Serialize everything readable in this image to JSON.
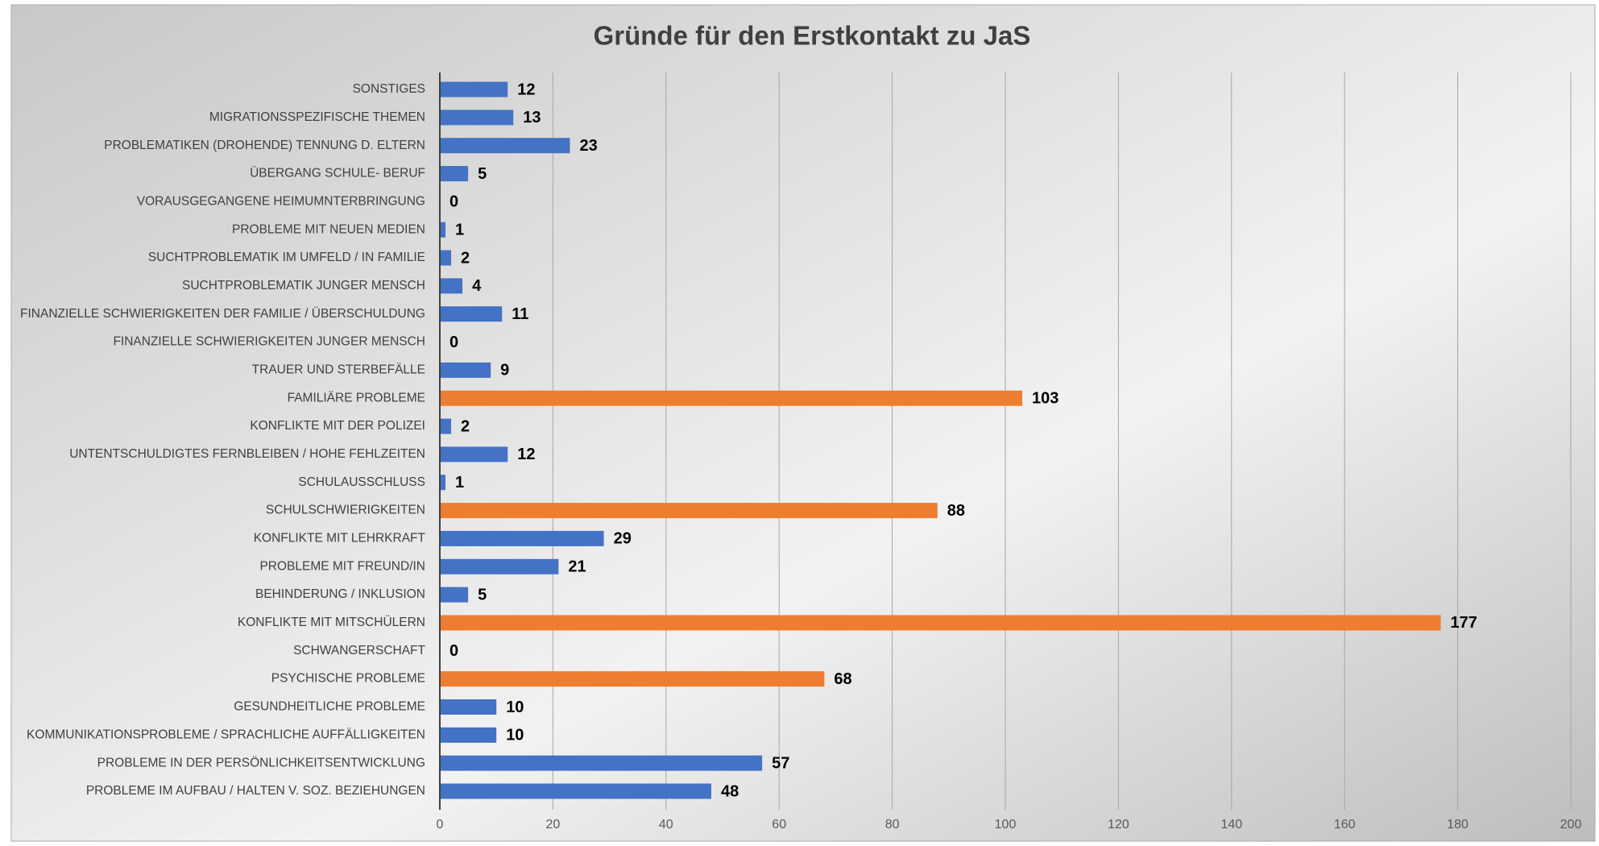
{
  "chart_data": {
    "type": "bar",
    "orientation": "horizontal",
    "title": "Gründe für den Erstkontakt zu JaS",
    "categories": [
      "SONSTIGES",
      "MIGRATIONSSPEZIFISCHE THEMEN",
      "PROBLEMATIKEN (DROHENDE) TENNUNG D. ELTERN",
      "ÜBERGANG SCHULE- BERUF",
      "VORAUSGEGANGENE HEIMUMNTERBRINGUNG",
      "PROBLEME MIT NEUEN MEDIEN",
      "SUCHTPROBLEMATIK IM UMFELD / IN FAMILIE",
      "SUCHTPROBLEMATIK JUNGER MENSCH",
      "FINANZIELLE SCHWIERIGKEITEN DER FAMILIE / ÜBERSCHULDUNG",
      "FINANZIELLE SCHWIERIGKEITEN JUNGER MENSCH",
      "TRAUER UND STERBEFÄLLE",
      "FAMILIÄRE PROBLEME",
      "KONFLIKTE MIT DER POLIZEI",
      "UNTENTSCHULDIGTES FERNBLEIBEN / HOHE FEHLZEITEN",
      "SCHULAUSSCHLUSS",
      "SCHULSCHWIERIGKEITEN",
      "KONFLIKTE MIT LEHRKRAFT",
      "PROBLEME MIT FREUND/IN",
      "BEHINDERUNG / INKLUSION",
      "KONFLIKTE MIT MITSCHÜLERN",
      "SCHWANGERSCHAFT",
      "PSYCHISCHE PROBLEME",
      "GESUNDHEITLICHE PROBLEME",
      "KOMMUNIKATIONSPROBLEME / SPRACHLICHE AUFFÄLLIGKEITEN",
      "PROBLEME IN DER PERSÖNLICHKEITSENTWICKLUNG",
      "PROBLEME IM AUFBAU / HALTEN V. SOZ.  BEZIEHUNGEN"
    ],
    "values": [
      12,
      13,
      23,
      5,
      0,
      1,
      2,
      4,
      11,
      0,
      9,
      103,
      2,
      12,
      1,
      88,
      29,
      21,
      5,
      177,
      0,
      68,
      10,
      10,
      57,
      48
    ],
    "colors": [
      "#4472c4",
      "#4472c4",
      "#4472c4",
      "#4472c4",
      "#4472c4",
      "#4472c4",
      "#4472c4",
      "#4472c4",
      "#4472c4",
      "#4472c4",
      "#4472c4",
      "#ed7d31",
      "#4472c4",
      "#4472c4",
      "#4472c4",
      "#ed7d31",
      "#4472c4",
      "#4472c4",
      "#4472c4",
      "#ed7d31",
      "#4472c4",
      "#ed7d31",
      "#4472c4",
      "#4472c4",
      "#4472c4",
      "#4472c4"
    ],
    "xlim": [
      0,
      200
    ],
    "xticks": [
      0,
      20,
      40,
      60,
      80,
      100,
      120,
      140,
      160,
      180,
      200
    ],
    "grid": true
  }
}
